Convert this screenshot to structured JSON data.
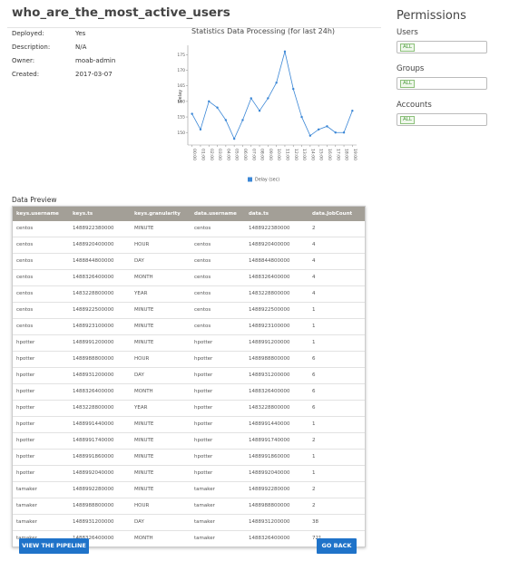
{
  "header": {
    "title": "who_are_the_most_active_users"
  },
  "details": [
    {
      "label": "Deployed:",
      "value": "Yes"
    },
    {
      "label": "Description:",
      "value": "N/A"
    },
    {
      "label": "Owner:",
      "value": "moab-admin"
    },
    {
      "label": "Created:",
      "value": "2017-03-07"
    }
  ],
  "chart_data": {
    "type": "line",
    "title": "Statistics Data Processing (for last 24h)",
    "y_label": "Delay",
    "categories": [
      "00:00",
      "01:00",
      "02:00",
      "03:00",
      "04:00",
      "05:00",
      "06:00",
      "07:00",
      "08:00",
      "09:00",
      "10:00",
      "11:00",
      "12:00",
      "13:00",
      "14:00",
      "15:00",
      "16:00",
      "17:00",
      "18:00",
      "19:00"
    ],
    "series": [
      {
        "name": "Delay (sec)",
        "color": "#3b87d6",
        "values": [
          156,
          151,
          160,
          158,
          154,
          148,
          154,
          161,
          157,
          161,
          166,
          176,
          164,
          155,
          149,
          151,
          152,
          150,
          150,
          157
        ]
      }
    ],
    "ylim": [
      146,
      178
    ],
    "yticks": [
      150,
      155,
      160,
      165,
      170,
      175
    ],
    "grid": false,
    "legend": "bottom"
  },
  "permissions": {
    "title": "Permissions",
    "sections": [
      {
        "label": "Users",
        "tag": "ALL"
      },
      {
        "label": "Groups",
        "tag": "ALL"
      },
      {
        "label": "Accounts",
        "tag": "ALL"
      }
    ]
  },
  "table": {
    "title": "Data Preview",
    "columns": [
      "keys.username",
      "keys.ts",
      "keys.granularity",
      "data.username",
      "data.ts",
      "data.JobCount"
    ],
    "rows": [
      [
        "centos",
        "1488922380000",
        "MINUTE",
        "centos",
        "1488922380000",
        "2"
      ],
      [
        "centos",
        "1488920400000",
        "HOUR",
        "centos",
        "1488920400000",
        "4"
      ],
      [
        "centos",
        "1488844800000",
        "DAY",
        "centos",
        "1488844800000",
        "4"
      ],
      [
        "centos",
        "1488326400000",
        "MONTH",
        "centos",
        "1488326400000",
        "4"
      ],
      [
        "centos",
        "1483228800000",
        "YEAR",
        "centos",
        "1483228800000",
        "4"
      ],
      [
        "centos",
        "1488922500000",
        "MINUTE",
        "centos",
        "1488922500000",
        "1"
      ],
      [
        "centos",
        "1488923100000",
        "MINUTE",
        "centos",
        "1488923100000",
        "1"
      ],
      [
        "hpotter",
        "1488991200000",
        "MINUTE",
        "hpotter",
        "1488991200000",
        "1"
      ],
      [
        "hpotter",
        "1488988800000",
        "HOUR",
        "hpotter",
        "1488988800000",
        "6"
      ],
      [
        "hpotter",
        "1488931200000",
        "DAY",
        "hpotter",
        "1488931200000",
        "6"
      ],
      [
        "hpotter",
        "1488326400000",
        "MONTH",
        "hpotter",
        "1488326400000",
        "6"
      ],
      [
        "hpotter",
        "1483228800000",
        "YEAR",
        "hpotter",
        "1483228800000",
        "6"
      ],
      [
        "hpotter",
        "1488991440000",
        "MINUTE",
        "hpotter",
        "1488991440000",
        "1"
      ],
      [
        "hpotter",
        "1488991740000",
        "MINUTE",
        "hpotter",
        "1488991740000",
        "2"
      ],
      [
        "hpotter",
        "1488991860000",
        "MINUTE",
        "hpotter",
        "1488991860000",
        "1"
      ],
      [
        "hpotter",
        "1488992040000",
        "MINUTE",
        "hpotter",
        "1488992040000",
        "1"
      ],
      [
        "tamaker",
        "1488992280000",
        "MINUTE",
        "tamaker",
        "1488992280000",
        "2"
      ],
      [
        "tamaker",
        "1488988800000",
        "HOUR",
        "tamaker",
        "1488988800000",
        "2"
      ],
      [
        "tamaker",
        "1488931200000",
        "DAY",
        "tamaker",
        "1488931200000",
        "38"
      ],
      [
        "tamaker",
        "1488326400000",
        "MONTH",
        "tamaker",
        "1488326400000",
        "721"
      ]
    ]
  },
  "buttons": {
    "left": "VIEW THE PIPELINE",
    "right": "GO BACK"
  }
}
